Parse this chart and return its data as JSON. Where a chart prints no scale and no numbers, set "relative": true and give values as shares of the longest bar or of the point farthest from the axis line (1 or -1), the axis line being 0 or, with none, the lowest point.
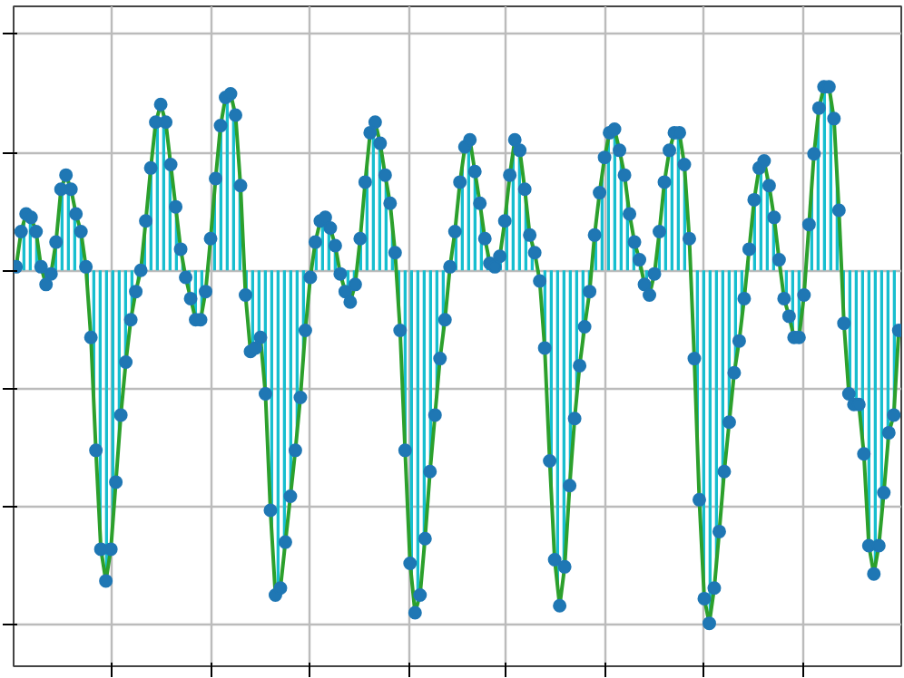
{
  "chart_data": {
    "type": "area",
    "relative": true,
    "grid": true,
    "tick_labels": false,
    "marker": "circle",
    "line_style": "solid",
    "categories": [
      null,
      null,
      null,
      null,
      null,
      null,
      null,
      null,
      null,
      null,
      null,
      null,
      null,
      null,
      null,
      null,
      null,
      null,
      null,
      null,
      null,
      null,
      null,
      null,
      null,
      null,
      null,
      null,
      null,
      null,
      null,
      null,
      null,
      null,
      null,
      null,
      null,
      null,
      null,
      null,
      null,
      null,
      null,
      null,
      null,
      null,
      null,
      null,
      null,
      null,
      null,
      null,
      null,
      null,
      null,
      null,
      null,
      null,
      null,
      null,
      null,
      null,
      null,
      null,
      null,
      null,
      null,
      null,
      null,
      null,
      null,
      null,
      null,
      null,
      null,
      null,
      null,
      null,
      null,
      null,
      null,
      null,
      null,
      null,
      null,
      null,
      null,
      null,
      null,
      null,
      null,
      null,
      null,
      null,
      null,
      null,
      null,
      null,
      null,
      null,
      null,
      null,
      null,
      null,
      null,
      null,
      null,
      null,
      null,
      null,
      null,
      null,
      null,
      null,
      null,
      null,
      null,
      null,
      null,
      null,
      null,
      null,
      null,
      null,
      null,
      null,
      null,
      null,
      null,
      null,
      null,
      null,
      null,
      null,
      null,
      null,
      null,
      null,
      null,
      null,
      null,
      null,
      null,
      null,
      null,
      null,
      null,
      null,
      null,
      null,
      null,
      null,
      null,
      null,
      null,
      null,
      null,
      null,
      null,
      null,
      null,
      null,
      null,
      null,
      null,
      null,
      null,
      null,
      null,
      null,
      null,
      null,
      null,
      null,
      null,
      null,
      null,
      null
    ],
    "series": [
      {
        "type": "area",
        "color": "#17becf",
        "values": [
          0.01,
          0.11,
          0.16,
          0.15,
          0.11,
          0.01,
          -0.04,
          -0.01,
          0.08,
          0.23,
          0.27,
          0.23,
          0.16,
          0.11,
          0.01,
          -0.19,
          -0.51,
          -0.79,
          -0.88,
          -0.79,
          -0.6,
          -0.41,
          -0.26,
          -0.14,
          -0.06,
          0.0,
          0.14,
          0.29,
          0.42,
          0.47,
          0.42,
          0.3,
          0.18,
          0.06,
          -0.02,
          -0.08,
          -0.14,
          -0.14,
          -0.06,
          0.09,
          0.26,
          0.41,
          0.49,
          0.5,
          0.44,
          0.24,
          -0.07,
          -0.23,
          -0.22,
          -0.19,
          -0.35,
          -0.68,
          -0.92,
          -0.9,
          -0.77,
          -0.64,
          -0.51,
          -0.36,
          -0.17,
          -0.02,
          0.08,
          0.14,
          0.15,
          0.12,
          0.07,
          -0.01,
          -0.06,
          -0.09,
          -0.04,
          0.09,
          0.25,
          0.39,
          0.42,
          0.36,
          0.27,
          0.19,
          0.05,
          -0.17,
          -0.51,
          -0.83,
          -0.97,
          -0.92,
          -0.76,
          -0.57,
          -0.41,
          -0.25,
          -0.14,
          0.01,
          0.11,
          0.25,
          0.35,
          0.37,
          0.28,
          0.19,
          0.09,
          0.02,
          0.01,
          0.04,
          0.14,
          0.27,
          0.37,
          0.34,
          0.23,
          0.1,
          0.05,
          -0.03,
          -0.22,
          -0.54,
          -0.82,
          -0.95,
          -0.84,
          -0.61,
          -0.42,
          -0.27,
          -0.16,
          -0.06,
          0.1,
          0.22,
          0.32,
          0.39,
          0.4,
          0.34,
          0.27,
          0.16,
          0.08,
          0.03,
          -0.04,
          -0.07,
          -0.01,
          0.11,
          0.25,
          0.34,
          0.39,
          0.39,
          0.3,
          0.09,
          -0.25,
          -0.65,
          -0.93,
          -1.0,
          -0.9,
          -0.74,
          -0.57,
          -0.43,
          -0.29,
          -0.2,
          -0.08,
          0.06,
          0.2,
          0.29,
          0.31,
          0.24,
          0.15,
          0.03,
          -0.08,
          -0.13,
          -0.19,
          -0.19,
          -0.07,
          0.13,
          0.33,
          0.46,
          0.52,
          0.52,
          0.43,
          0.17,
          -0.15,
          -0.35,
          -0.38,
          -0.38,
          -0.52,
          -0.78,
          -0.86,
          -0.78,
          -0.63,
          -0.46,
          -0.41,
          -0.17
        ]
      }
    ]
  }
}
